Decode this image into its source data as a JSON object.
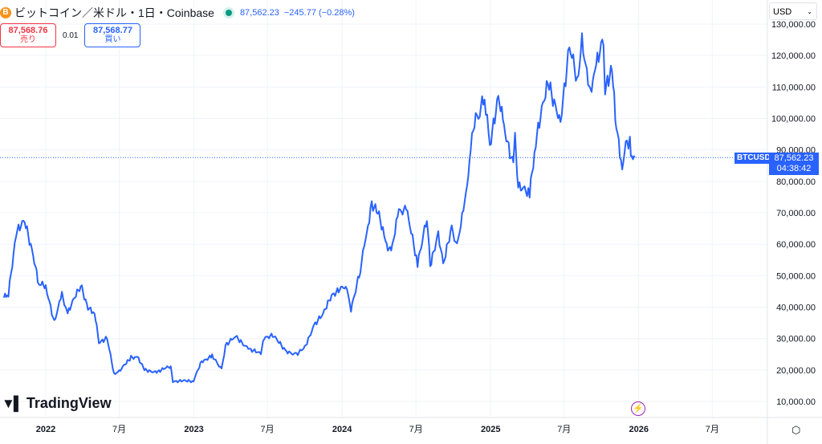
{
  "header": {
    "coin_glyph": "B",
    "title": "ビットコイン／米ドル・1日・Coinbase",
    "last": "87,562.23",
    "change": "−245.77 (−0.28%)"
  },
  "bidask": {
    "sell_price": "87,568.76",
    "sell_label": "売り",
    "spread": "0.01",
    "buy_price": "87,568.77",
    "buy_label": "買い"
  },
  "currency": "USD",
  "price_label": {
    "symbol": "BTCUSD",
    "price": "87,562.23",
    "countdown": "04:38:42"
  },
  "brand": "TradingView",
  "colors": {
    "line": "#2962ff",
    "grid": "#f0f3fa",
    "text": "#131722"
  },
  "chart_data": {
    "type": "line",
    "grid": true,
    "ylim": [
      5000,
      132000
    ],
    "yticks": [
      10000,
      20000,
      30000,
      40000,
      50000,
      60000,
      70000,
      80000,
      90000,
      100000,
      110000,
      120000,
      130000
    ],
    "ytick_labels": [
      "10,000.00",
      "20,000.00",
      "30,000.00",
      "40,000.00",
      "50,000.00",
      "60,000.00",
      "70,000.00",
      "80,000.00",
      "90,000.00",
      "100,000.00",
      "110,000.00",
      "120,000.00",
      "130,000.00"
    ],
    "xticks": [
      {
        "date": "2022-01-01",
        "label": "2022"
      },
      {
        "date": "2022-07-01",
        "label": "7月"
      },
      {
        "date": "2023-01-01",
        "label": "2023"
      },
      {
        "date": "2023-07-01",
        "label": "7月"
      },
      {
        "date": "2024-01-01",
        "label": "2024"
      },
      {
        "date": "2024-07-01",
        "label": "7月"
      },
      {
        "date": "2025-01-01",
        "label": "2025"
      },
      {
        "date": "2025-07-01",
        "label": "7月"
      },
      {
        "date": "2026-01-01",
        "label": "2026"
      },
      {
        "date": "2026-07-01",
        "label": "7月"
      }
    ],
    "last_value": 87562.23,
    "points": [
      [
        "2021-09-20",
        43000
      ],
      [
        "2021-10-01",
        44000
      ],
      [
        "2021-10-20",
        64000
      ],
      [
        "2021-11-10",
        67000
      ],
      [
        "2021-12-01",
        57000
      ],
      [
        "2021-12-15",
        47000
      ],
      [
        "2022-01-01",
        47000
      ],
      [
        "2022-01-22",
        35000
      ],
      [
        "2022-02-10",
        44000
      ],
      [
        "2022-02-24",
        38000
      ],
      [
        "2022-03-28",
        47000
      ],
      [
        "2022-04-15",
        40000
      ],
      [
        "2022-05-01",
        38000
      ],
      [
        "2022-05-12",
        29000
      ],
      [
        "2022-06-01",
        30000
      ],
      [
        "2022-06-18",
        19000
      ],
      [
        "2022-07-01",
        19500
      ],
      [
        "2022-07-30",
        24000
      ],
      [
        "2022-08-15",
        24200
      ],
      [
        "2022-09-01",
        20000
      ],
      [
        "2022-10-01",
        19400
      ],
      [
        "2022-11-05",
        21200
      ],
      [
        "2022-11-10",
        16500
      ],
      [
        "2022-12-31",
        16500
      ],
      [
        "2023-01-20",
        22800
      ],
      [
        "2023-02-15",
        24500
      ],
      [
        "2023-03-10",
        20000
      ],
      [
        "2023-03-20",
        28000
      ],
      [
        "2023-04-14",
        30500
      ],
      [
        "2023-05-15",
        27000
      ],
      [
        "2023-06-15",
        25000
      ],
      [
        "2023-06-23",
        30500
      ],
      [
        "2023-07-14",
        31000
      ],
      [
        "2023-08-17",
        26000
      ],
      [
        "2023-09-11",
        25000
      ],
      [
        "2023-10-01",
        27000
      ],
      [
        "2023-10-24",
        34500
      ],
      [
        "2023-11-15",
        37500
      ],
      [
        "2023-12-06",
        44000
      ],
      [
        "2024-01-10",
        46500
      ],
      [
        "2024-01-23",
        39500
      ],
      [
        "2024-02-15",
        52000
      ],
      [
        "2024-03-05",
        66000
      ],
      [
        "2024-03-14",
        73000
      ],
      [
        "2024-04-01",
        69000
      ],
      [
        "2024-04-17",
        61000
      ],
      [
        "2024-05-01",
        57000
      ],
      [
        "2024-05-20",
        71000
      ],
      [
        "2024-06-07",
        71000
      ],
      [
        "2024-07-05",
        54000
      ],
      [
        "2024-07-28",
        69000
      ],
      [
        "2024-08-05",
        53000
      ],
      [
        "2024-08-25",
        64000
      ],
      [
        "2024-09-06",
        53000
      ],
      [
        "2024-09-27",
        66000
      ],
      [
        "2024-10-10",
        59000
      ],
      [
        "2024-10-29",
        73000
      ],
      [
        "2024-11-13",
        90000
      ],
      [
        "2024-11-22",
        99000
      ],
      [
        "2024-12-05",
        103000
      ],
      [
        "2024-12-17",
        106000
      ],
      [
        "2024-12-30",
        92000
      ],
      [
        "2025-01-20",
        106000
      ],
      [
        "2025-02-03",
        98000
      ],
      [
        "2025-02-26",
        84000
      ],
      [
        "2025-03-02",
        94000
      ],
      [
        "2025-03-10",
        78000
      ],
      [
        "2025-04-07",
        76000
      ],
      [
        "2025-04-22",
        93000
      ],
      [
        "2025-05-22",
        111000
      ],
      [
        "2025-06-22",
        100000
      ],
      [
        "2025-07-14",
        122000
      ],
      [
        "2025-08-02",
        113000
      ],
      [
        "2025-08-14",
        124000
      ],
      [
        "2025-09-01",
        108000
      ],
      [
        "2025-09-18",
        117000
      ],
      [
        "2025-10-06",
        124500
      ],
      [
        "2025-10-10",
        110000
      ],
      [
        "2025-10-27",
        115000
      ],
      [
        "2025-11-04",
        101000
      ],
      [
        "2025-11-21",
        84000
      ],
      [
        "2025-12-03",
        93000
      ],
      [
        "2025-12-10",
        92000
      ],
      [
        "2025-12-15",
        86000
      ],
      [
        "2025-12-20",
        88000
      ],
      [
        "2025-12-22",
        87562.23
      ]
    ]
  }
}
